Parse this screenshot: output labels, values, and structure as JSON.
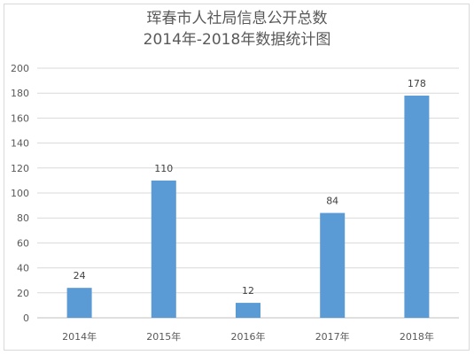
{
  "chart_data": {
    "type": "bar",
    "title": [
      "珲春市人社局信息公开总数",
      "2014年-2018年数据统计图"
    ],
    "categories": [
      "2014年",
      "2015年",
      "2016年",
      "2017年",
      "2018年"
    ],
    "values": [
      24,
      110,
      12,
      84,
      178
    ],
    "data_labels": [
      "24",
      "110",
      "12",
      "84",
      "178"
    ],
    "y_ticks": [
      "0",
      "20",
      "40",
      "60",
      "80",
      "100",
      "120",
      "140",
      "160",
      "180",
      "200"
    ],
    "ylim": [
      0,
      200
    ],
    "xlabel": "",
    "ylabel": "",
    "grid": true,
    "legend": "none",
    "bar_color": "#5b9bd5",
    "grid_color": "#d9d9d9",
    "axis_color": "#bfbfbf",
    "text_color": "#595959"
  }
}
